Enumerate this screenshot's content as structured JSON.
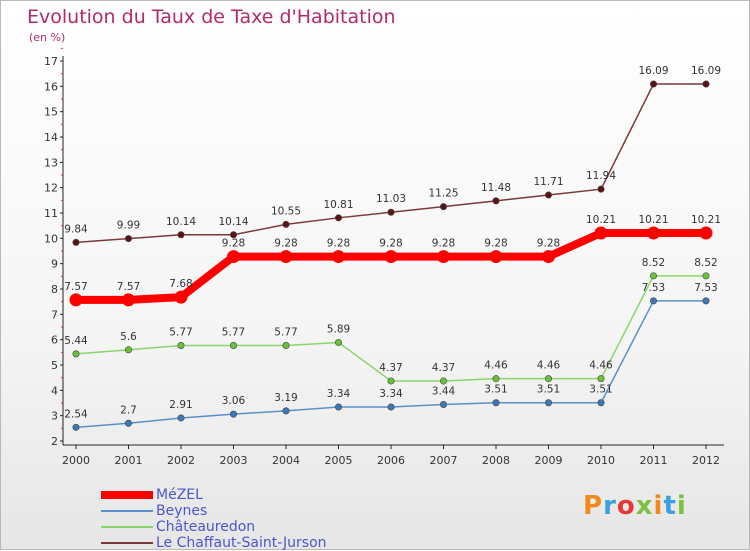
{
  "title": "Evolution du Taux de Taxe d'Habitation",
  "subtitle": "(en %)",
  "brand": "Proxiti",
  "chart_data": {
    "type": "line",
    "title": "Evolution du Taux de Taxe d'Habitation",
    "ylabel": "(en %)",
    "xlabel": "",
    "ylim": [
      2,
      17
    ],
    "yticks": [
      2,
      3,
      4,
      5,
      6,
      7,
      8,
      9,
      10,
      11,
      12,
      13,
      14,
      15,
      16,
      17
    ],
    "grid": false,
    "legend_position": "bottom-left",
    "categories": [
      "2000",
      "2001",
      "2002",
      "2003",
      "2004",
      "2005",
      "2006",
      "2007",
      "2008",
      "2009",
      "2010",
      "2011",
      "2012"
    ],
    "series": [
      {
        "name": "MéZEL",
        "color": "#ff0000",
        "marker_color": "#ff0000",
        "values": [
          7.57,
          7.57,
          7.68,
          9.28,
          9.28,
          9.28,
          9.28,
          9.28,
          9.28,
          9.28,
          10.21,
          10.21,
          10.21
        ]
      },
      {
        "name": "Beynes",
        "color": "#5b8fc7",
        "marker_color": "#3a78b8",
        "values": [
          2.54,
          2.7,
          2.91,
          3.06,
          3.19,
          3.34,
          3.34,
          3.44,
          3.51,
          3.51,
          3.51,
          7.53,
          7.53
        ]
      },
      {
        "name": "Châteauredon",
        "color": "#8ad56a",
        "marker_color": "#66c33a",
        "values": [
          5.44,
          5.6,
          5.77,
          5.77,
          5.77,
          5.89,
          4.37,
          4.37,
          4.46,
          4.46,
          4.46,
          8.52,
          8.52
        ]
      },
      {
        "name": "Le Chaffaut-Saint-Jurson",
        "color": "#7a3a3a",
        "marker_color": "#5a1414",
        "values": [
          9.84,
          9.99,
          10.14,
          10.14,
          10.55,
          10.81,
          11.03,
          11.25,
          11.48,
          11.71,
          11.94,
          16.09,
          16.09
        ]
      }
    ],
    "data_labels": {
      "MéZEL": [
        "7.57",
        "7.57",
        "7.68",
        "9.28",
        "9.28",
        "9.28",
        "9.28",
        "9.28",
        "9.28",
        "9.28",
        "10.21",
        "10.21",
        "10.21"
      ],
      "Beynes": [
        "2.54",
        "2.7",
        "2.91",
        "3.06",
        "3.19",
        "3.34",
        "3.34",
        "3.44",
        "3.51",
        "3.51",
        "3.51",
        "7.53",
        "7.53"
      ],
      "Châteauredon": [
        "5.44",
        "5.6",
        "5.77",
        "5.77",
        "5.77",
        "5.89",
        "4.37",
        "4.37",
        "4.46",
        "4.46",
        "4.46",
        "8.52",
        "8.52"
      ],
      "Le Chaffaut-Saint-Jurson": [
        "9.84",
        "9.99",
        "10.14",
        "10.14",
        "10.55",
        "10.81",
        "11.03",
        "11.25",
        "11.48",
        "11.71",
        "11.94",
        "16.09",
        "16.09"
      ]
    }
  },
  "legend": [
    {
      "label": "MéZEL",
      "color": "#ff0000"
    },
    {
      "label": "Beynes",
      "color": "#5b8fc7"
    },
    {
      "label": "Châteauredon",
      "color": "#8ad56a"
    },
    {
      "label": "Le Chaffaut-Saint-Jurson",
      "color": "#7a3a3a"
    }
  ],
  "brand_colors": [
    "#f08a1c",
    "#3aa0e0",
    "#e53935",
    "#7cc242",
    "#f08a1c",
    "#3aa0e0",
    "#7cc242"
  ]
}
